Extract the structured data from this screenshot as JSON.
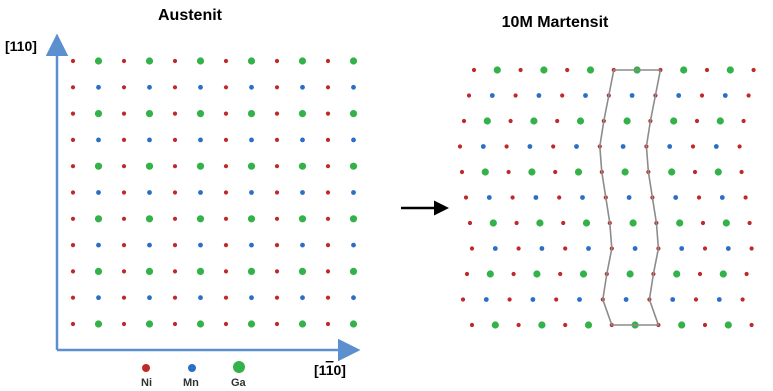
{
  "austenite": {
    "title": "Austenit"
  },
  "martensite": {
    "title": "10M Martensit"
  },
  "axes": {
    "y_label": "[110]",
    "x_label_prefix": "[1",
    "x_label_bar": "1",
    "x_label_suffix": "0]"
  },
  "legend": [
    {
      "label": "Ni",
      "color": "#c0282a"
    },
    {
      "label": "Mn",
      "color": "#2a6fc4"
    },
    {
      "label": "Ga",
      "color": "#33b249"
    }
  ],
  "colors": {
    "Ni": "#c0282a",
    "Mn": "#2a6fc4",
    "Ga": "#33b249",
    "axis": "#5b8fd0",
    "outline": "#8c8c8c",
    "arrow": "#000000"
  }
}
